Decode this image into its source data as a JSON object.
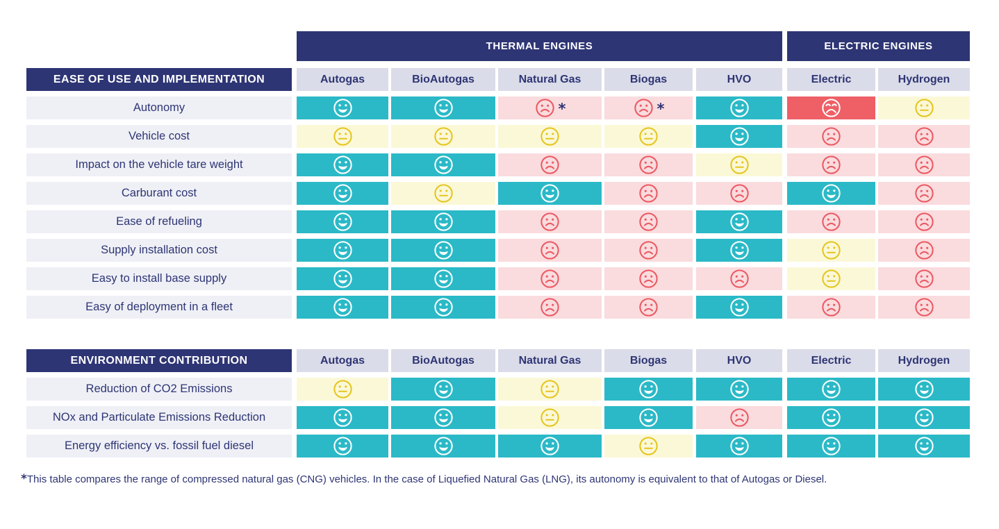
{
  "group_headers": [
    {
      "label": "THERMAL ENGINES"
    },
    {
      "label": "ELECTRIC ENGINES"
    }
  ],
  "columns": [
    "Autogas",
    "BioAutogas",
    "Natural Gas",
    "Biogas",
    "HVO",
    "Electric",
    "Hydrogen"
  ],
  "rating_icons": {
    "good": "smiley-happy-icon",
    "neutral": "smiley-neutral-icon",
    "bad": "smiley-sad-icon",
    "very-bad": "smiley-very-sad-icon"
  },
  "colors": {
    "navy": "#2e3574",
    "column_header_bg": "#dbdce9",
    "row_label_bg": "#eff0f6",
    "good_bg": "#2bb9c7",
    "neutral_bg": "#fbf8d7",
    "neutral_icon": "#e5c51f",
    "bad_bg": "#fadbde",
    "bad_icon": "#ea5a62",
    "very_bad_bg": "#ee5f66"
  },
  "chart_data": {
    "type": "table",
    "title": "",
    "column_groups": [
      {
        "label": "THERMAL ENGINES",
        "columns": [
          "Autogas",
          "BioAutogas",
          "Natural Gas",
          "Biogas",
          "HVO"
        ]
      },
      {
        "label": "ELECTRIC ENGINES",
        "columns": [
          "Electric",
          "Hydrogen"
        ]
      }
    ],
    "rating_scale": [
      "good",
      "neutral",
      "bad",
      "very-bad"
    ],
    "sections": [
      {
        "title": "EASE OF USE AND IMPLEMENTATION",
        "rows": [
          {
            "label": "Autonomy",
            "values": [
              "good",
              "good",
              "bad*",
              "bad*",
              "good",
              "very-bad",
              "neutral"
            ]
          },
          {
            "label": "Vehicle cost",
            "values": [
              "neutral",
              "neutral",
              "neutral",
              "neutral",
              "good",
              "bad",
              "bad"
            ]
          },
          {
            "label": "Impact on the vehicle tare weight",
            "values": [
              "good",
              "good",
              "bad",
              "bad",
              "neutral",
              "bad",
              "bad"
            ]
          },
          {
            "label": "Carburant cost",
            "values": [
              "good",
              "neutral",
              "good",
              "bad",
              "bad",
              "good",
              "bad"
            ]
          },
          {
            "label": "Ease of refueling",
            "values": [
              "good",
              "good",
              "bad",
              "bad",
              "good",
              "bad",
              "bad"
            ]
          },
          {
            "label": "Supply installation cost",
            "values": [
              "good",
              "good",
              "bad",
              "bad",
              "good",
              "neutral",
              "bad"
            ]
          },
          {
            "label": "Easy to install base supply",
            "values": [
              "good",
              "good",
              "bad",
              "bad",
              "bad",
              "neutral",
              "bad"
            ]
          },
          {
            "label": "Easy of deployment in a fleet",
            "values": [
              "good",
              "good",
              "bad",
              "bad",
              "good",
              "bad",
              "bad"
            ]
          }
        ]
      },
      {
        "title": "ENVIRONMENT CONTRIBUTION",
        "rows": [
          {
            "label": "Reduction of CO2 Emissions",
            "values": [
              "neutral",
              "good",
              "neutral",
              "good",
              "good",
              "good",
              "good"
            ]
          },
          {
            "label": "NOx and Particulate Emissions Reduction",
            "values": [
              "good",
              "good",
              "neutral",
              "good",
              "bad",
              "good",
              "good"
            ]
          },
          {
            "label": "Energy efficiency vs. fossil fuel diesel",
            "values": [
              "good",
              "good",
              "good",
              "neutral",
              "good",
              "good",
              "good"
            ]
          }
        ]
      }
    ],
    "cell_note_marker": "*"
  },
  "footnote": {
    "marker": "*",
    "text": "This table compares the range of compressed natural gas (CNG) vehicles. In the case of Liquefied Natural Gas (LNG), its autonomy is equivalent to that of Autogas or Diesel."
  }
}
